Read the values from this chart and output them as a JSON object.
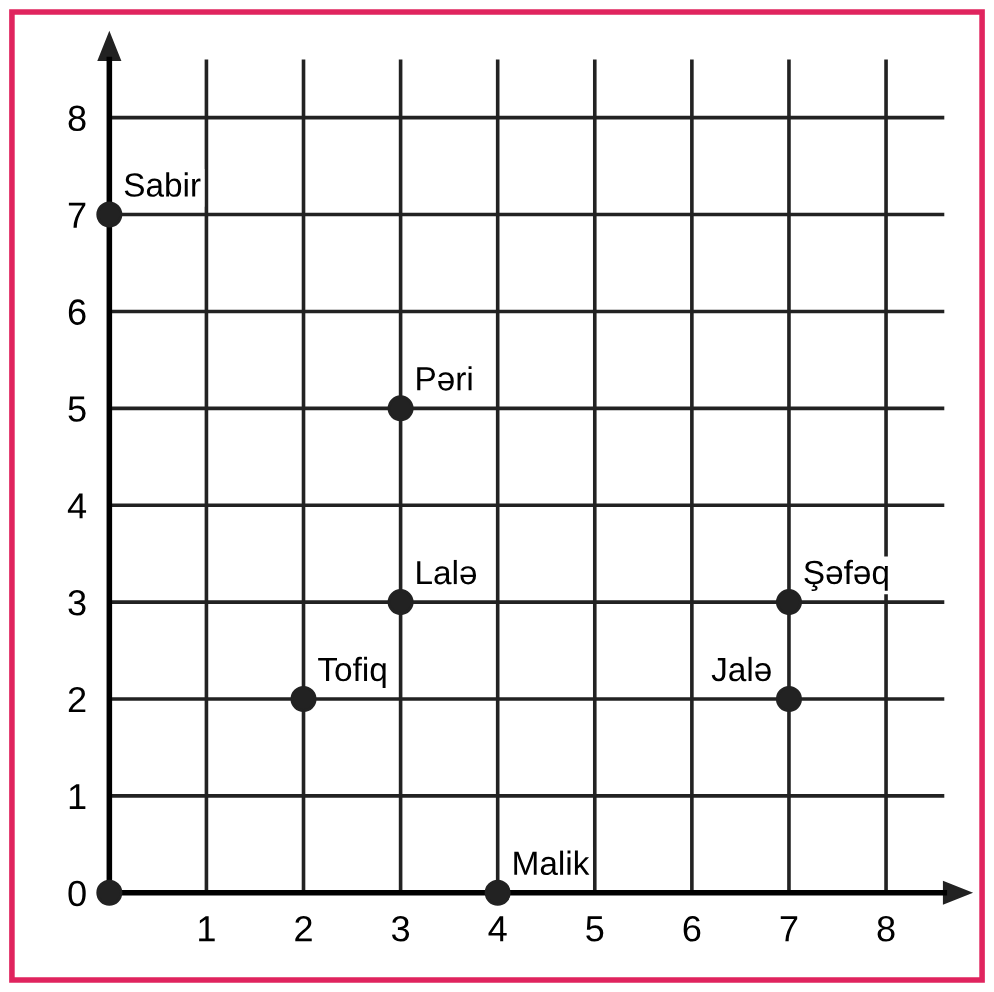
{
  "chart_data": {
    "type": "scatter",
    "x": [
      0,
      3,
      3,
      7,
      7,
      2,
      4,
      0
    ],
    "values": [
      7,
      5,
      3,
      3,
      2,
      2,
      0,
      0
    ],
    "color": "#222222",
    "marker": "circle",
    "xlim": [
      0,
      8.6
    ],
    "ylim": [
      0,
      8.6
    ],
    "xticks": [
      1,
      2,
      3,
      4,
      5,
      6,
      7,
      8
    ],
    "yticks": [
      0,
      1,
      2,
      3,
      4,
      5,
      6,
      7,
      8
    ],
    "grid": true,
    "annotations": [
      {
        "text": "Sabir",
        "x": 0,
        "y": 7
      },
      {
        "text": "Pəri",
        "x": 3,
        "y": 5
      },
      {
        "text": "Lalə",
        "x": 3,
        "y": 3
      },
      {
        "text": "Şəfəq",
        "x": 7,
        "y": 3
      },
      {
        "text": "Jalə",
        "x": 7,
        "y": 2
      },
      {
        "text": "Tofiq",
        "x": 2,
        "y": 2
      },
      {
        "text": "Malik",
        "x": 4,
        "y": 0
      }
    ]
  }
}
